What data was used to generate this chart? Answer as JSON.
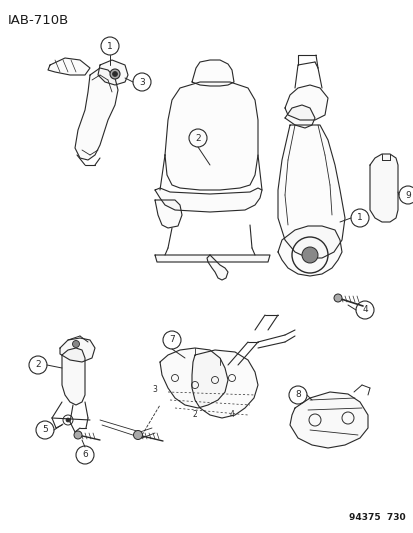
{
  "title": "IAB-710B",
  "footer": "94375  730",
  "bg_color": "#ffffff",
  "line_color": "#2a2a2a",
  "label_color": "#1a1a1a",
  "fig_width": 4.14,
  "fig_height": 5.33,
  "dpi": 100
}
